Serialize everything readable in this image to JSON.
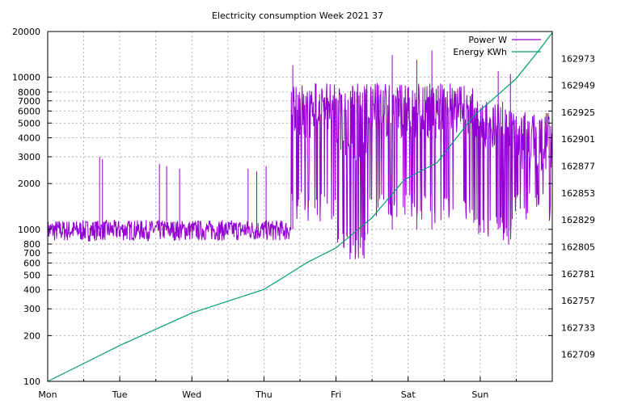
{
  "chart_data": {
    "type": "line",
    "title": "Electricity consumption Week 2021 37",
    "xlabel": "",
    "ylabel": "",
    "y2label": "",
    "x_categories": [
      "Mon",
      "Tue",
      "Wed",
      "Thu",
      "Fri",
      "Sat",
      "Sun"
    ],
    "x_range": [
      0,
      7
    ],
    "y_scale": "log",
    "y_range": [
      100,
      20000
    ],
    "y_ticks": [
      100,
      200,
      300,
      400,
      500,
      600,
      700,
      800,
      1000,
      2000,
      3000,
      4000,
      5000,
      6000,
      7000,
      8000,
      10000,
      20000
    ],
    "y2_range": [
      162685,
      162997
    ],
    "y2_ticks": [
      162709,
      162733,
      162757,
      162781,
      162805,
      162829,
      162853,
      162877,
      162901,
      162925,
      162949,
      162973
    ],
    "grid": true,
    "legend_position": "top-right",
    "colors": {
      "power": "#9400d3",
      "energy": "#009e73"
    },
    "series": [
      {
        "name": "Power W",
        "axis": "y1",
        "segments": [
          {
            "x": [
              0.0,
              0.65
            ],
            "base": 950,
            "low": 830,
            "high": 1150
          },
          {
            "x": [
              0.65,
              1.75
            ],
            "base": 960,
            "low": 840,
            "high": 1150
          },
          {
            "x": [
              1.75,
              2.65
            ],
            "base": 950,
            "low": 840,
            "high": 1150
          },
          {
            "x": [
              2.65,
              3.38
            ],
            "base": 970,
            "low": 840,
            "high": 1150
          },
          {
            "x": [
              3.38,
              4.0
            ],
            "base": 5000,
            "low": 1250,
            "high": 9200
          },
          {
            "x": [
              4.0,
              4.45
            ],
            "base": 3500,
            "low": 700,
            "high": 9200
          },
          {
            "x": [
              4.45,
              5.0
            ],
            "base": 5000,
            "low": 1250,
            "high": 9200
          },
          {
            "x": [
              5.0,
              5.9
            ],
            "base": 5000,
            "low": 1200,
            "high": 9200
          },
          {
            "x": [
              5.9,
              6.45
            ],
            "base": 4000,
            "low": 880,
            "high": 7000
          },
          {
            "x": [
              6.45,
              7.0
            ],
            "base": 3000,
            "low": 1250,
            "high": 6000
          }
        ],
        "spikes": [
          {
            "x": 0.72,
            "y": 3000
          },
          {
            "x": 0.76,
            "y": 2900
          },
          {
            "x": 1.55,
            "y": 2700
          },
          {
            "x": 1.65,
            "y": 2600
          },
          {
            "x": 1.83,
            "y": 2500
          },
          {
            "x": 2.78,
            "y": 2500
          },
          {
            "x": 2.9,
            "y": 2400
          },
          {
            "x": 3.03,
            "y": 2600
          },
          {
            "x": 3.4,
            "y": 12000
          },
          {
            "x": 4.2,
            "y": 7500
          },
          {
            "x": 4.78,
            "y": 14000
          },
          {
            "x": 5.12,
            "y": 13000
          },
          {
            "x": 5.33,
            "y": 15000
          },
          {
            "x": 6.25,
            "y": 11000
          },
          {
            "x": 6.42,
            "y": 10500
          }
        ]
      },
      {
        "name": "Energy KWh",
        "axis": "y2",
        "points": [
          [
            0.0,
            162685
          ],
          [
            1.0,
            162717
          ],
          [
            2.0,
            162746
          ],
          [
            3.0,
            162767
          ],
          [
            3.2,
            162775
          ],
          [
            3.6,
            162791
          ],
          [
            4.0,
            162804
          ],
          [
            4.5,
            162831
          ],
          [
            4.95,
            162865
          ],
          [
            5.4,
            162880
          ],
          [
            5.9,
            162921
          ],
          [
            6.5,
            162955
          ],
          [
            6.85,
            162983
          ],
          [
            7.0,
            162996
          ]
        ]
      }
    ]
  }
}
